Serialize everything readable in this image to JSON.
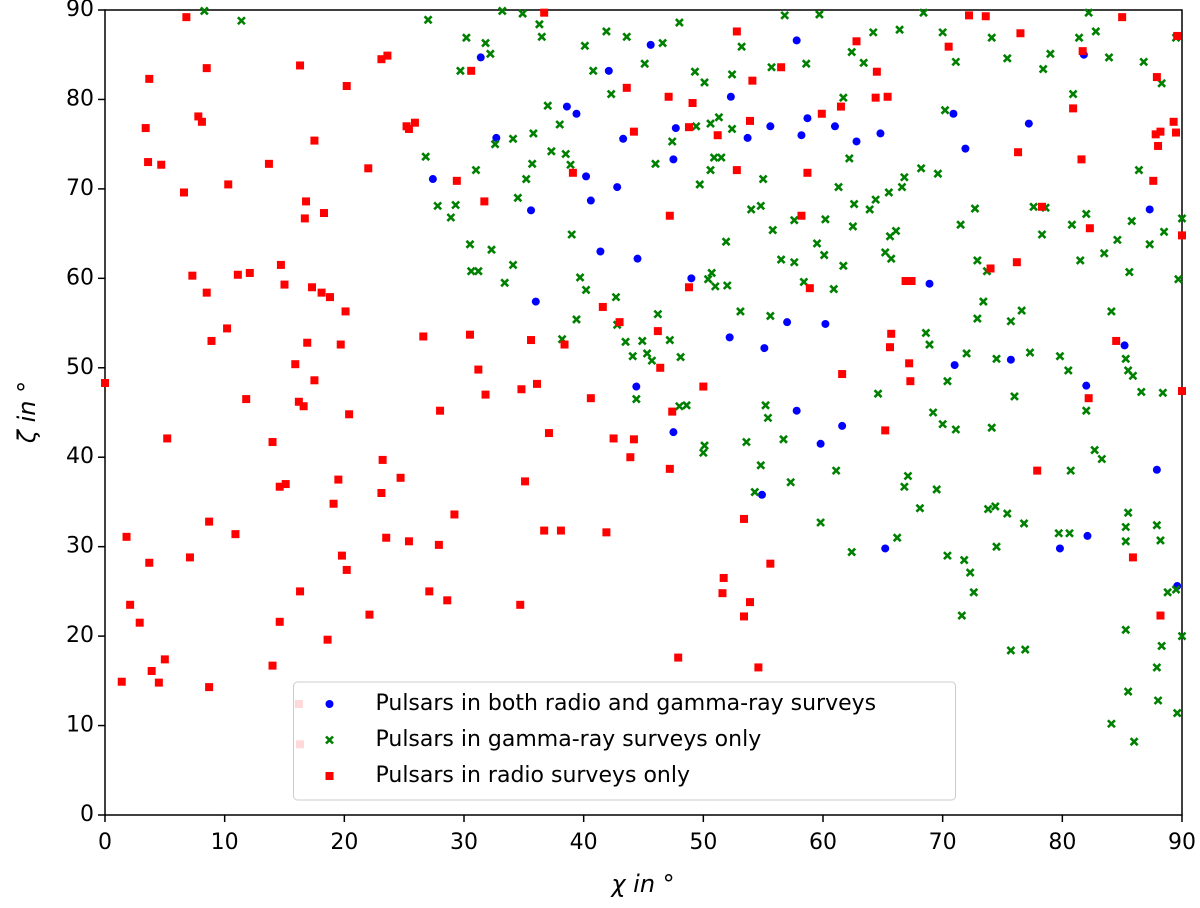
{
  "chart_data": {
    "type": "scatter",
    "xlabel": "χ in °",
    "ylabel": "ζ in °",
    "xlim": [
      0,
      90
    ],
    "ylim": [
      0,
      90
    ],
    "xticks": [
      0,
      10,
      20,
      30,
      40,
      50,
      60,
      70,
      80,
      90
    ],
    "yticks": [
      0,
      10,
      20,
      30,
      40,
      50,
      60,
      70,
      80,
      90
    ],
    "grid": false,
    "legend": "lower center",
    "series": [
      {
        "name": "Pulsars in both radio and gamma-ray surveys",
        "color": "#0000ff",
        "marker": "circle",
        "x": [
          31.4,
          45.6,
          57.8,
          81.8,
          42.1,
          32.7,
          38.6,
          39.4,
          52.3,
          27.4,
          35.6,
          40.2,
          42.8,
          43.3,
          47.5,
          47.7,
          53.7,
          55.6,
          58.2,
          58.7,
          61.0,
          62.8,
          64.8,
          70.9,
          71.9,
          77.2,
          40.6,
          41.4,
          44.5,
          36.0,
          49.0,
          52.2,
          55.1,
          57.0,
          60.2,
          68.9,
          71.0,
          75.7,
          44.4,
          47.5,
          57.8,
          61.6,
          59.8,
          54.9,
          82.0,
          85.2,
          87.9,
          87.3,
          82.1,
          79.8,
          65.2,
          89.6
        ],
        "y": [
          84.7,
          86.1,
          86.6,
          85.0,
          83.2,
          75.7,
          79.2,
          78.4,
          80.3,
          71.1,
          67.6,
          71.4,
          70.2,
          75.6,
          73.3,
          76.8,
          75.7,
          77.0,
          76.0,
          77.9,
          77.0,
          75.3,
          76.2,
          78.4,
          74.5,
          77.3,
          68.7,
          63.0,
          62.2,
          57.4,
          60.0,
          53.4,
          52.2,
          55.1,
          54.9,
          59.4,
          50.3,
          50.9,
          47.9,
          42.8,
          45.2,
          43.5,
          41.5,
          35.8,
          48.0,
          52.5,
          38.6,
          67.7,
          31.2,
          29.8,
          29.8,
          25.6
        ]
      },
      {
        "name": "Pulsars in gamma-ray surveys only",
        "color": "#008000",
        "marker": "x",
        "x": [
          8.3,
          11.4,
          27.0,
          29.7,
          30.2,
          31.8,
          32.2,
          33.2,
          34.9,
          36.3,
          36.5,
          40.1,
          40.8,
          41.9,
          42.3,
          43.6,
          45.1,
          46.6,
          48.0,
          49.3,
          50.1,
          52.4,
          53.2,
          55.7,
          56.8,
          58.6,
          59.7,
          61.7,
          62.4,
          63.4,
          64.2,
          66.4,
          68.4,
          70.0,
          71.1,
          74.1,
          75.4,
          78.4,
          79.0,
          80.9,
          81.4,
          82.2,
          82.8,
          83.9,
          86.8,
          88.3,
          89.5,
          32.6,
          34.1,
          35.8,
          35.7,
          37.0,
          38.0,
          37.3,
          38.5,
          38.9,
          35.2,
          34.5,
          31.0,
          26.8,
          27.8,
          28.9,
          29.3,
          30.5,
          30.6,
          31.2,
          32.3,
          33.4,
          34.1,
          39.0,
          39.7,
          39.4,
          38.2,
          40.2,
          42.7,
          42.8,
          43.5,
          44.9,
          44.1,
          45.3,
          45.7,
          44.4,
          46.2,
          47.2,
          48.1,
          48.0,
          48.6,
          50.1,
          50.0,
          50.4,
          50.7,
          51.0,
          51.9,
          50.6,
          50.9,
          51.5,
          49.7,
          46.0,
          47.4,
          49.4,
          50.6,
          51.3,
          52.4,
          54.0,
          54.8,
          55.0,
          55.8,
          56.5,
          57.6,
          58.4,
          59.5,
          60.2,
          60.1,
          61.3,
          62.2,
          62.6,
          63.9,
          64.4,
          65.5,
          65.6,
          65.2,
          65.7,
          66.1,
          66.8,
          66.6,
          68.2,
          69.6,
          70.2,
          71.5,
          72.7,
          72.9,
          73.7,
          73.4,
          72.9,
          75.7,
          76.6,
          77.6,
          78.6,
          80.8,
          81.5,
          82.0,
          83.5,
          84.1,
          84.6,
          85.6,
          85.8,
          86.4,
          87.3,
          89.7,
          90.0,
          88.5,
          78.3,
          79.8,
          80.5,
          82.0,
          82.7,
          83.3,
          80.7,
          85.3,
          85.5,
          85.9,
          86.6,
          88.4,
          85.5,
          85.3,
          85.3,
          87.9,
          88.2,
          88.8,
          89.5,
          88.3,
          87.9,
          88.0,
          89.6,
          84.1,
          86.0,
          85.5,
          85.3,
          90.0,
          52.0,
          53.1,
          55.6,
          55.2,
          55.4,
          53.6,
          56.7,
          54.8,
          54.3,
          57.3,
          59.8,
          61.1,
          62.4,
          64.6,
          66.8,
          67.1,
          68.1,
          69.5,
          70.0,
          71.1,
          70.4,
          71.8,
          71.6,
          72.3,
          72.6,
          73.8,
          74.4,
          74.1,
          74.5,
          75.4,
          75.7,
          76.9,
          76.8,
          79.7,
          80.6,
          76.0,
          77.3,
          69.2,
          68.9,
          72.0,
          57.6,
          60.9,
          61.7,
          62.5,
          68.6,
          70.4,
          74.5,
          66.2
        ],
        "y": [
          89.9,
          88.8,
          88.9,
          83.2,
          86.9,
          86.3,
          85.1,
          89.9,
          89.6,
          88.4,
          87.0,
          86.0,
          83.2,
          87.6,
          80.6,
          87.0,
          84.0,
          86.3,
          88.6,
          83.1,
          81.9,
          82.8,
          85.9,
          83.6,
          89.4,
          84.0,
          89.5,
          80.2,
          85.3,
          84.1,
          87.5,
          87.8,
          89.7,
          87.5,
          84.2,
          86.9,
          84.6,
          83.4,
          85.1,
          80.6,
          86.9,
          89.7,
          87.6,
          84.7,
          84.2,
          81.8,
          86.9,
          75.0,
          75.6,
          76.2,
          72.8,
          79.3,
          77.2,
          74.2,
          73.9,
          72.7,
          71.1,
          69.0,
          72.1,
          73.6,
          68.1,
          66.8,
          68.2,
          63.8,
          60.8,
          60.8,
          63.2,
          59.5,
          61.5,
          64.9,
          60.1,
          55.4,
          53.2,
          58.7,
          57.9,
          54.8,
          52.9,
          53.0,
          51.3,
          51.6,
          50.8,
          46.5,
          56.0,
          53.1,
          51.2,
          45.7,
          45.8,
          41.3,
          40.5,
          59.9,
          60.6,
          59.1,
          64.1,
          72.1,
          73.5,
          73.5,
          70.5,
          72.8,
          75.3,
          77.0,
          77.3,
          78.0,
          76.7,
          67.7,
          68.1,
          71.1,
          65.4,
          62.1,
          61.8,
          59.6,
          63.9,
          66.6,
          62.6,
          70.2,
          73.4,
          68.3,
          67.7,
          68.8,
          69.6,
          64.7,
          62.9,
          62.2,
          65.3,
          71.3,
          70.2,
          72.3,
          71.7,
          78.8,
          66.0,
          67.8,
          62.0,
          60.8,
          57.4,
          55.5,
          55.2,
          56.4,
          68.0,
          67.9,
          66.0,
          62.0,
          67.2,
          62.8,
          56.3,
          64.3,
          60.7,
          66.4,
          72.1,
          63.8,
          59.9,
          66.7,
          65.2,
          64.9,
          51.3,
          49.7,
          45.2,
          40.8,
          39.8,
          38.5,
          51.0,
          49.7,
          49.1,
          47.3,
          47.2,
          33.8,
          32.2,
          30.6,
          32.4,
          30.7,
          24.9,
          25.2,
          18.9,
          16.5,
          12.8,
          11.4,
          10.2,
          8.2,
          13.8,
          20.7,
          20.0,
          59.2,
          56.3,
          55.8,
          45.8,
          44.4,
          41.7,
          42.0,
          39.1,
          36.1,
          37.2,
          32.7,
          38.5,
          29.4,
          47.1,
          36.7,
          37.9,
          34.3,
          36.4,
          43.7,
          43.1,
          29.0,
          28.5,
          22.3,
          27.1,
          24.9,
          34.2,
          34.5,
          43.3,
          30.0,
          33.7,
          18.4,
          18.5,
          32.6,
          31.5,
          31.5,
          46.8,
          51.7,
          45.0,
          52.6,
          51.6,
          66.5,
          58.8,
          61.4,
          65.8,
          53.9,
          48.5,
          51.0,
          31.0
        ]
      },
      {
        "name": "Pulsars in radio surveys only",
        "color": "#ff0000",
        "marker": "square",
        "x": [
          6.8,
          3.7,
          8.5,
          3.4,
          7.8,
          8.1,
          3.6,
          4.7,
          6.6,
          10.3,
          16.3,
          20.2,
          23.1,
          23.6,
          25.9,
          25.2,
          25.4,
          17.5,
          13.7,
          22.0,
          16.8,
          16.7,
          18.3,
          7.3,
          8.5,
          11.1,
          12.1,
          14.7,
          15.0,
          17.3,
          18.1,
          18.8,
          20.1,
          10.2,
          8.9,
          16.9,
          15.9,
          17.5,
          19.7,
          16.2,
          16.6,
          11.8,
          20.4,
          5.2,
          14.0,
          14.6,
          15.1,
          19.5,
          19.1,
          8.7,
          10.9,
          1.8,
          7.1,
          3.7,
          19.8,
          20.2,
          16.3,
          2.1,
          2.9,
          14.6,
          22.1,
          18.6,
          3.9,
          5.0,
          4.5,
          1.4,
          8.7,
          14.0,
          16.2,
          16.3,
          0.0,
          26.6,
          30.5,
          31.2,
          31.8,
          28.0,
          23.2,
          24.7,
          23.1,
          23.5,
          25.4,
          29.2,
          27.9,
          27.1,
          28.6,
          29.4,
          30.6,
          31.7,
          34.8,
          35.1,
          35.6,
          36.1,
          37.1,
          36.7,
          38.1,
          38.4,
          39.1,
          40.6,
          41.6,
          42.5,
          43.0,
          43.6,
          43.9,
          44.2,
          44.2,
          41.9,
          34.7,
          36.7,
          46.2,
          46.4,
          47.1,
          47.2,
          47.2,
          47.4,
          47.9,
          48.8,
          48.8,
          49.1,
          50.0,
          51.2,
          52.8,
          52.8,
          51.7,
          51.6,
          53.4,
          53.4,
          53.9,
          54.1,
          53.9,
          54.6,
          55.6,
          56.5,
          58.2,
          58.7,
          58.9,
          59.9,
          61.5,
          61.6,
          62.8,
          64.4,
          64.5,
          65.2,
          65.4,
          65.6,
          65.7,
          66.9,
          67.2,
          67.3,
          67.4,
          70.5,
          72.2,
          73.6,
          74.0,
          76.2,
          76.3,
          76.5,
          77.9,
          78.3,
          80.9,
          81.6,
          81.7,
          82.2,
          82.3,
          84.5,
          85.0,
          85.9,
          87.6,
          87.8,
          87.9,
          88.0,
          88.2,
          88.2,
          89.3,
          89.5,
          89.6,
          90.0,
          90.0
        ],
        "y": [
          89.2,
          82.3,
          83.5,
          76.8,
          78.1,
          77.5,
          73.0,
          72.7,
          69.6,
          70.5,
          83.8,
          81.5,
          84.5,
          84.9,
          77.4,
          77.0,
          76.7,
          75.4,
          72.8,
          72.3,
          68.6,
          66.7,
          67.3,
          60.3,
          58.4,
          60.4,
          60.6,
          61.5,
          59.3,
          59.0,
          58.4,
          57.9,
          56.3,
          54.4,
          53.0,
          52.8,
          50.4,
          48.6,
          52.6,
          46.2,
          45.7,
          46.5,
          44.8,
          42.1,
          41.7,
          36.7,
          37.0,
          37.5,
          34.8,
          32.8,
          31.4,
          31.1,
          28.8,
          28.2,
          29.0,
          27.4,
          25.0,
          23.5,
          21.5,
          21.6,
          22.4,
          19.6,
          16.1,
          17.4,
          14.8,
          14.9,
          14.3,
          16.7,
          12.4,
          7.9,
          48.3,
          53.5,
          53.7,
          49.8,
          47.0,
          45.2,
          39.7,
          37.7,
          36.0,
          31.0,
          30.6,
          33.6,
          30.2,
          25.0,
          24.0,
          70.9,
          83.2,
          68.6,
          47.6,
          37.3,
          53.1,
          48.2,
          42.7,
          31.8,
          31.8,
          52.6,
          71.8,
          46.6,
          56.8,
          42.1,
          55.1,
          81.3,
          40.0,
          76.4,
          42.0,
          31.6,
          23.5,
          89.7,
          54.1,
          50.0,
          80.3,
          67.0,
          38.7,
          45.1,
          17.6,
          59.0,
          76.9,
          79.6,
          47.9,
          76.0,
          87.6,
          72.1,
          26.5,
          24.8,
          22.2,
          33.1,
          23.8,
          82.1,
          77.6,
          16.5,
          28.1,
          83.6,
          67.0,
          71.8,
          58.9,
          78.4,
          79.2,
          49.3,
          86.5,
          80.2,
          83.1,
          43.0,
          80.3,
          52.3,
          53.8,
          59.7,
          50.5,
          48.5,
          59.7,
          85.9,
          89.4,
          89.3,
          61.1,
          61.8,
          74.1,
          87.4,
          38.5,
          68.0,
          79.0,
          73.3,
          85.4,
          46.6,
          65.6,
          53.0,
          89.2,
          28.8,
          70.9,
          76.1,
          82.5,
          74.8,
          76.4,
          22.3,
          77.5,
          76.3,
          87.1,
          64.8,
          47.4
        ]
      }
    ]
  }
}
